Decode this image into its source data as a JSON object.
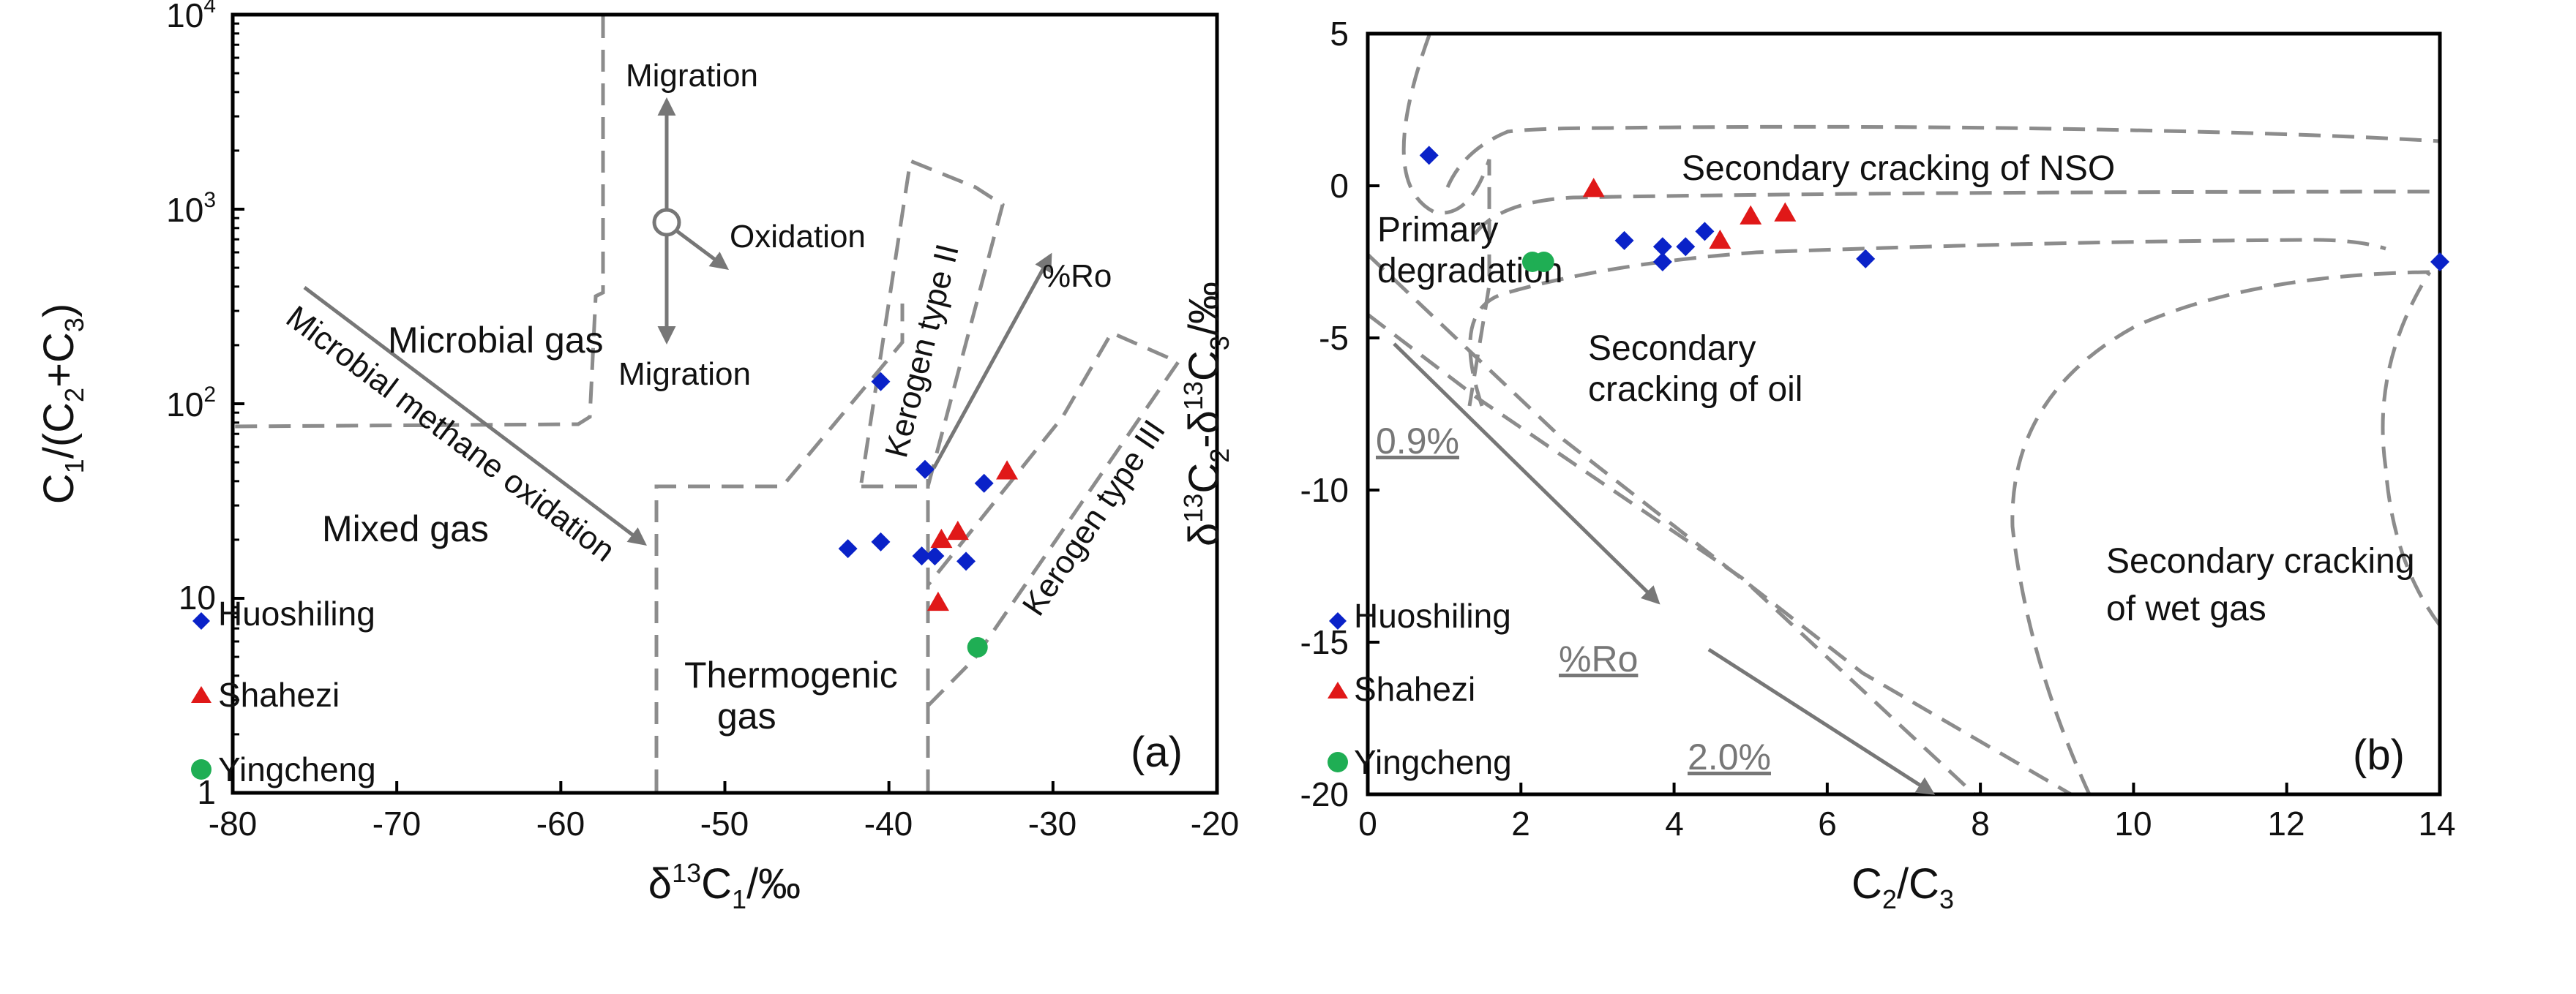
{
  "colors": {
    "Huoshiling": "#0a22c8",
    "Shahezi": "#e01818",
    "Yingcheng": "#1fae54",
    "boundary": "#8c8c8c",
    "arrow": "#777777"
  },
  "chart_data": [
    {
      "type": "scatter",
      "panel_label": "(a)",
      "xlabel": "δ13C1/‰",
      "ylabel": "C1/(C2+C3)",
      "xlim": [
        -80,
        -20
      ],
      "ylim": [
        1,
        10000
      ],
      "yscale": "log",
      "xticks": [
        -80,
        -70,
        -60,
        -50,
        -40,
        -30,
        -20
      ],
      "yticks": [
        1,
        10,
        100,
        1000,
        10000
      ],
      "ytick_labels": [
        "1",
        "10",
        "10²",
        "10³",
        "10⁴"
      ],
      "series": [
        {
          "name": "Huoshiling",
          "marker": "diamond",
          "x": [
            -40.5,
            -37.8,
            -34.2,
            -42.5,
            -40.5,
            -38.0,
            -37.2,
            -35.3
          ],
          "y": [
            130,
            46,
            39,
            18,
            19.5,
            16.5,
            16.5,
            15.5
          ]
        },
        {
          "name": "Shahezi",
          "marker": "triangle",
          "x": [
            -32.8,
            -35.8,
            -36.8,
            -37.0
          ],
          "y": [
            45,
            22,
            20,
            9.5
          ]
        },
        {
          "name": "Yingcheng",
          "marker": "circle",
          "x": [
            -34.6
          ],
          "y": [
            5.6
          ]
        }
      ],
      "regions": [
        "Microbial gas",
        "Mixed gas",
        "Thermogenic gas"
      ],
      "annotations": [
        "Migration",
        "Migration",
        "Oxidation",
        "%Ro",
        "Microbial methane oxidation",
        "Kerogen type II",
        "Kerogen type III"
      ]
    },
    {
      "type": "scatter",
      "panel_label": "(b)",
      "xlabel": "C2/C3",
      "ylabel": "δ13C2-δ13C3/‰",
      "xlim": [
        0,
        14
      ],
      "ylim": [
        -20,
        5
      ],
      "xticks": [
        0,
        2,
        4,
        6,
        8,
        10,
        12,
        14
      ],
      "yticks": [
        -20,
        -15,
        -10,
        -5,
        0,
        5
      ],
      "series": [
        {
          "name": "Huoshiling",
          "marker": "diamond",
          "x": [
            0.8,
            3.35,
            3.85,
            3.85,
            4.15,
            4.4,
            6.5,
            14.0
          ],
          "y": [
            1.0,
            -1.8,
            -2.0,
            -2.5,
            -2.0,
            -1.5,
            -2.4,
            -2.5
          ]
        },
        {
          "name": "Shahezi",
          "marker": "triangle",
          "x": [
            2.95,
            4.6,
            5.0,
            5.45
          ],
          "y": [
            -0.1,
            -1.8,
            -1.0,
            -0.9
          ]
        },
        {
          "name": "Yingcheng",
          "marker": "circle",
          "x": [
            2.15,
            2.3
          ],
          "y": [
            -2.5,
            -2.5
          ]
        }
      ],
      "regions": [
        "Primary degradation",
        "Secondary cracking of NSO",
        "Secondary cracking of oil",
        "Secondary cracking of wet gas"
      ],
      "annotations": [
        "0.9%",
        "%Ro",
        "2.0%"
      ]
    }
  ],
  "panelA": {
    "ylabel_main": "C",
    "ylabel_s1": "1",
    "ylabel_mid": "/(C",
    "ylabel_s2": "2",
    "ylabel_plus": "+C",
    "ylabel_s3": "3",
    "ylabel_close": ")",
    "xlabel_delta": "δ",
    "xlabel_13": "13",
    "xlabel_C": "C",
    "xlabel_1": "1",
    "xlabel_tail": "/‰",
    "ytick_1": "1",
    "ytick_10": "10",
    "ytick_100_base": "10",
    "ytick_100_exp": "2",
    "ytick_1000_base": "10",
    "ytick_1000_exp": "3",
    "ytick_10000_base": "10",
    "ytick_10000_exp": "4",
    "region_microbial": "Microbial gas",
    "region_mixed": "Mixed gas",
    "region_thermo_1": "Thermogenic",
    "region_thermo_2": "gas",
    "migration_up": "Migration",
    "migration_down": "Migration",
    "oxidation": "Oxidation",
    "ro": "%Ro",
    "microbial_oxidation": "Microbial methane oxidation",
    "kerogen_ii": "Kerogen type II",
    "kerogen_iii": "Kerogen type III",
    "legend": [
      "Huoshiling",
      "Shahezi",
      "Yingcheng"
    ]
  },
  "panelB": {
    "ylabel_delta1": "δ",
    "ylabel_13a": "13",
    "ylabel_C2": "C",
    "ylabel_2": "2",
    "ylabel_dash": "-δ",
    "ylabel_13b": "13",
    "ylabel_C3": "C",
    "ylabel_3": "3",
    "ylabel_tail": "/‰",
    "xlabel_C": "C",
    "xlabel_2": "2",
    "xlabel_slash": "/C",
    "xlabel_3": "3",
    "region_primary_1": "Primary",
    "region_primary_2": "degradation",
    "region_nso": "Secondary cracking of NSO",
    "region_oil_1": "Secondary",
    "region_oil_2": "cracking of oil",
    "region_wet_1": "Secondary cracking",
    "region_wet_2": "of wet gas",
    "ro_low": "0.9%",
    "ro": "%Ro",
    "ro_high": "2.0%",
    "legend": [
      "Huoshiling",
      "Shahezi",
      "Yingcheng"
    ]
  }
}
